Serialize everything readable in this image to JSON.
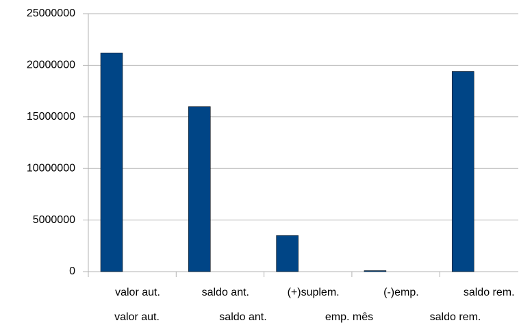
{
  "chart_data": {
    "type": "bar",
    "categories": [
      "valor aut.",
      "saldo ant.",
      "(+)suplem.",
      "(-)emp.",
      "saldo rem."
    ],
    "values": [
      21200000,
      16000000,
      3500000,
      100000,
      19400000
    ],
    "color": "#004586",
    "ylim": [
      0,
      25000000
    ],
    "yticks": [
      0,
      5000000,
      10000000,
      15000000,
      20000000,
      25000000
    ],
    "grid": true,
    "legend": [
      "valor aut.",
      "saldo ant.",
      "emp. mês",
      "saldo rem."
    ]
  }
}
